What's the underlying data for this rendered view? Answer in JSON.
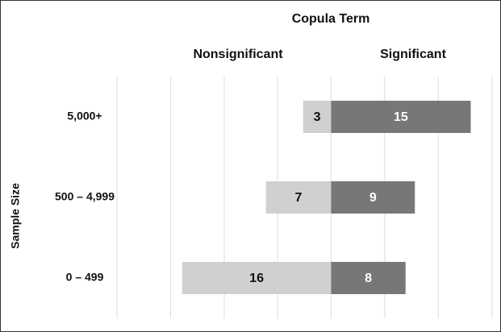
{
  "chart_data": {
    "type": "diverging_bar",
    "title": "Copula Term",
    "ylabel": "Sample Size",
    "categories": [
      "5,000+",
      "500 – 4,999",
      "0 – 499"
    ],
    "series": [
      {
        "name": "Nonsignificant",
        "color": "#d0d0d0",
        "values": [
          3,
          7,
          16
        ]
      },
      {
        "name": "Significant",
        "color": "#777777",
        "values": [
          15,
          9,
          8
        ]
      }
    ],
    "xlim": [
      -23,
      17.3
    ],
    "xticks": [
      -23,
      -17.24,
      -11.48,
      -5.76,
      0,
      5.76,
      11.52,
      17.3
    ],
    "grid": true
  }
}
